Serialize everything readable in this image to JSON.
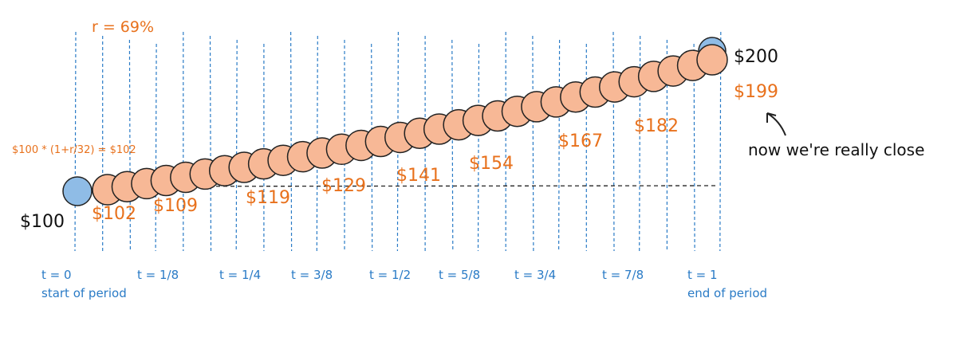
{
  "rate_label": "r = 69%",
  "formula": "$100 * (1+r/32) = $102",
  "start_value": "$100",
  "target_value": "$200",
  "final_value": "$199",
  "note": "now we're really close",
  "step_labels": [
    "$102",
    "$109",
    "$119",
    "$129",
    "$141",
    "$154",
    "$167",
    "$182"
  ],
  "time_labels": [
    "t = 0",
    "t = 1/8",
    "t = 1/4",
    "t = 3/8",
    "t = 1/2",
    "t = 5/8",
    "t = 3/4",
    "t = 7/8",
    "t = 1"
  ],
  "start_caption": "start of period",
  "end_caption": "end of period"
}
